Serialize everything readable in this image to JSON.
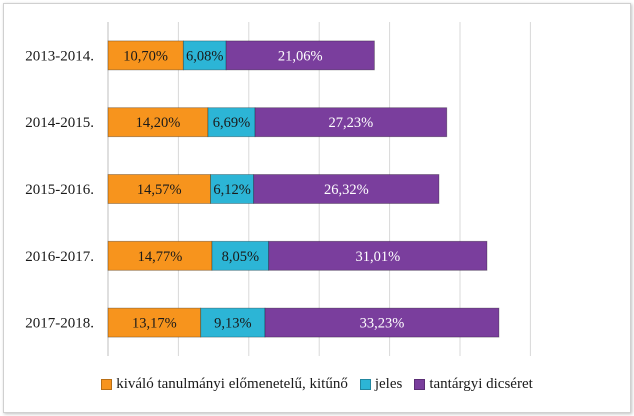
{
  "chart_data": {
    "type": "bar",
    "orientation": "horizontal",
    "stacked": true,
    "title": "",
    "xlabel": "",
    "ylabel": "",
    "categories": [
      "2013-2014.",
      "2014-2015.",
      "2015-2016.",
      "2016-2017.",
      "2017-2018."
    ],
    "series": [
      {
        "name": "kiváló tanulmányi előmenetelű, kitűnő",
        "color": "#F7941D",
        "values": [
          10.7,
          14.2,
          14.57,
          14.77,
          13.17
        ],
        "labels": [
          "10,70%",
          "14,20%",
          "14,57%",
          "14,77%",
          "13,17%"
        ]
      },
      {
        "name": "jeles",
        "color": "#2CB5D6",
        "values": [
          6.08,
          6.69,
          6.12,
          8.05,
          9.13
        ],
        "labels": [
          "6,08%",
          "6,69%",
          "6,12%",
          "8,05%",
          "9,13%"
        ]
      },
      {
        "name": "tantárgyi dicséret",
        "color": "#7A3E9D",
        "values": [
          21.06,
          27.23,
          26.32,
          31.01,
          33.23
        ],
        "labels": [
          "21,06%",
          "27,23%",
          "26,32%",
          "31,01%",
          "33,23%"
        ]
      }
    ],
    "xlim": [
      0,
      60
    ],
    "gridlines": "vertical",
    "legend_position": "bottom"
  }
}
